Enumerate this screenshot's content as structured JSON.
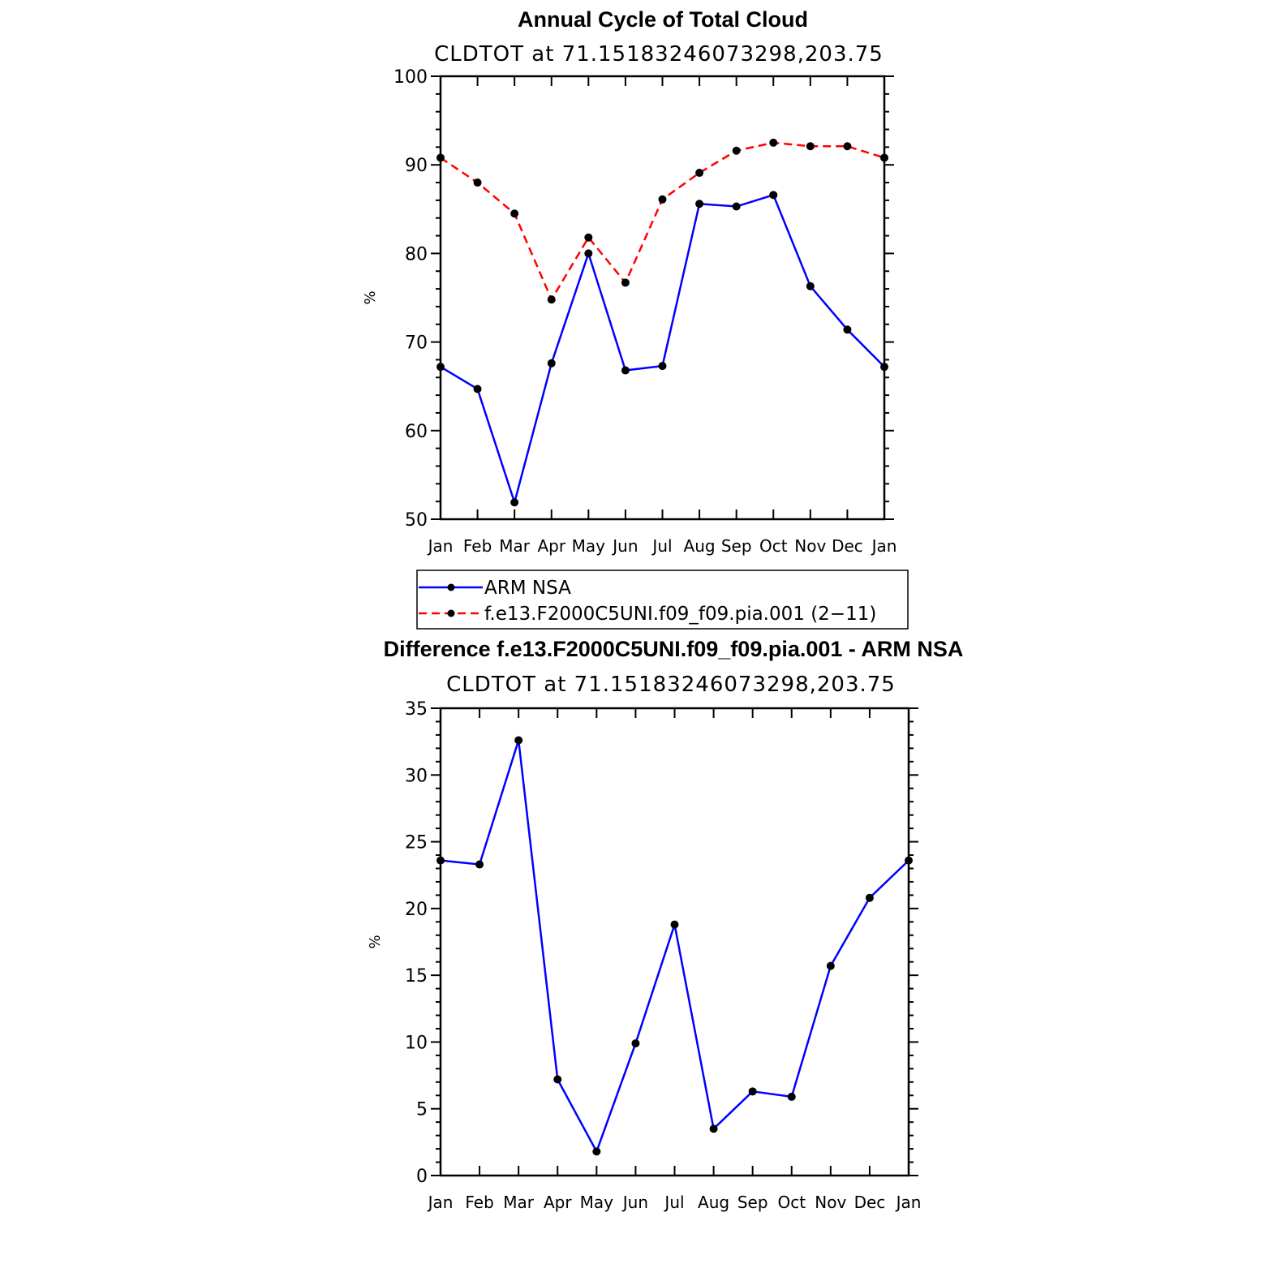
{
  "chart_data": [
    {
      "type": "line",
      "title": "Annual Cycle of Total Cloud",
      "subtitle": "CLDTOT at 71.15183246073298,203.75",
      "ylabel": "%",
      "ylim": [
        50,
        100
      ],
      "yticks": [
        50,
        60,
        70,
        80,
        90,
        100
      ],
      "categories": [
        "Jan",
        "Feb",
        "Mar",
        "Apr",
        "May",
        "Jun",
        "Jul",
        "Aug",
        "Sep",
        "Oct",
        "Nov",
        "Dec",
        "Jan"
      ],
      "grid": false,
      "legend_position": "below",
      "series": [
        {
          "name": "ARM NSA",
          "color": "#0000ff",
          "dashed": false,
          "values": [
            67.2,
            64.7,
            51.9,
            67.6,
            80.0,
            66.8,
            67.3,
            85.6,
            85.3,
            86.6,
            76.3,
            71.4,
            67.2
          ]
        },
        {
          "name": "f.e13.F2000C5UNI.f09_f09.pia.001 (2−11)",
          "color": "#ff0000",
          "dashed": true,
          "values": [
            90.8,
            88.0,
            84.5,
            74.8,
            81.8,
            76.7,
            86.1,
            89.1,
            91.6,
            92.5,
            92.1,
            92.1,
            90.8
          ]
        }
      ]
    },
    {
      "type": "line",
      "title": "Difference f.e13.F2000C5UNI.f09_f09.pia.001 - ARM NSA",
      "subtitle": "CLDTOT at 71.15183246073298,203.75",
      "ylabel": "%",
      "ylim": [
        0,
        35
      ],
      "yticks": [
        0,
        5,
        10,
        15,
        20,
        25,
        30,
        35
      ],
      "categories": [
        "Jan",
        "Feb",
        "Mar",
        "Apr",
        "May",
        "Jun",
        "Jul",
        "Aug",
        "Sep",
        "Oct",
        "Nov",
        "Dec",
        "Jan"
      ],
      "grid": false,
      "series": [
        {
          "color": "#0000ff",
          "dashed": false,
          "values": [
            23.6,
            23.3,
            32.6,
            7.2,
            1.8,
            9.9,
            18.8,
            3.5,
            6.3,
            5.9,
            15.7,
            20.8,
            23.6
          ]
        }
      ]
    }
  ]
}
